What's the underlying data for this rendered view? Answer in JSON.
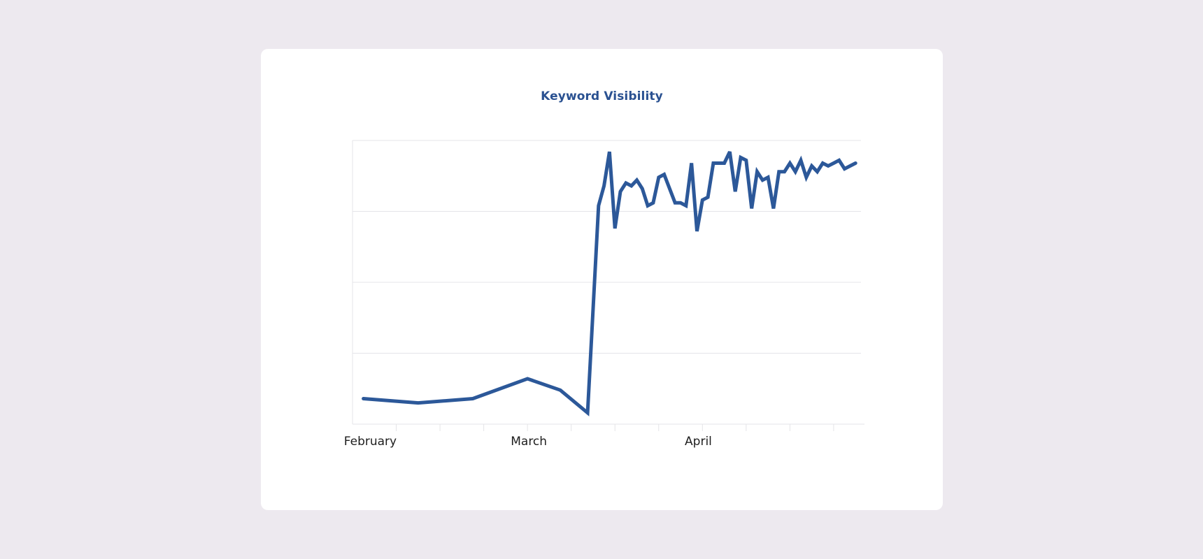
{
  "chart_data": {
    "type": "line",
    "title": "Keyword Visibility",
    "xlabel": "",
    "ylabel": "",
    "x_tick_labels": [
      "February",
      "March",
      "April"
    ],
    "x_range": [
      "2024-01-29",
      "2024-05-01"
    ],
    "y_range": [
      0,
      100
    ],
    "gridlines": "horizontal",
    "legend": "none",
    "line_color": "#2c5899",
    "series": [
      {
        "x": [
          "2024-01-31",
          "2024-02-10",
          "2024-02-20",
          "2024-03-01",
          "2024-03-07",
          "2024-03-12",
          "2024-03-14",
          "2024-03-15",
          "2024-03-16",
          "2024-03-17",
          "2024-03-18",
          "2024-03-19",
          "2024-03-20",
          "2024-03-21",
          "2024-03-22",
          "2024-03-23",
          "2024-03-24",
          "2024-03-25",
          "2024-03-26",
          "2024-03-27",
          "2024-03-28",
          "2024-03-29",
          "2024-03-30",
          "2024-03-31",
          "2024-04-01",
          "2024-04-02",
          "2024-04-03",
          "2024-04-04",
          "2024-04-05",
          "2024-04-06",
          "2024-04-07",
          "2024-04-08",
          "2024-04-09",
          "2024-04-10",
          "2024-04-11",
          "2024-04-12",
          "2024-04-13",
          "2024-04-14",
          "2024-04-15",
          "2024-04-16",
          "2024-04-17",
          "2024-04-18",
          "2024-04-19",
          "2024-04-20",
          "2024-04-21",
          "2024-04-22",
          "2024-04-23",
          "2024-04-24",
          "2024-04-25",
          "2024-04-26",
          "2024-04-27",
          "2024-04-28",
          "2024-04-29",
          "2024-04-30"
        ],
        "values": [
          9,
          7.5,
          9,
          16,
          12,
          4,
          77,
          84,
          96,
          69,
          82,
          85,
          84,
          86,
          83,
          77,
          78,
          87,
          88,
          83,
          78,
          78,
          77,
          92,
          68,
          79,
          80,
          92,
          92,
          92,
          96,
          82,
          94,
          93,
          76,
          89,
          86,
          87,
          76,
          89,
          89,
          92,
          89,
          93,
          87,
          91,
          89,
          92,
          91,
          92,
          93,
          90,
          91,
          92
        ]
      }
    ]
  }
}
